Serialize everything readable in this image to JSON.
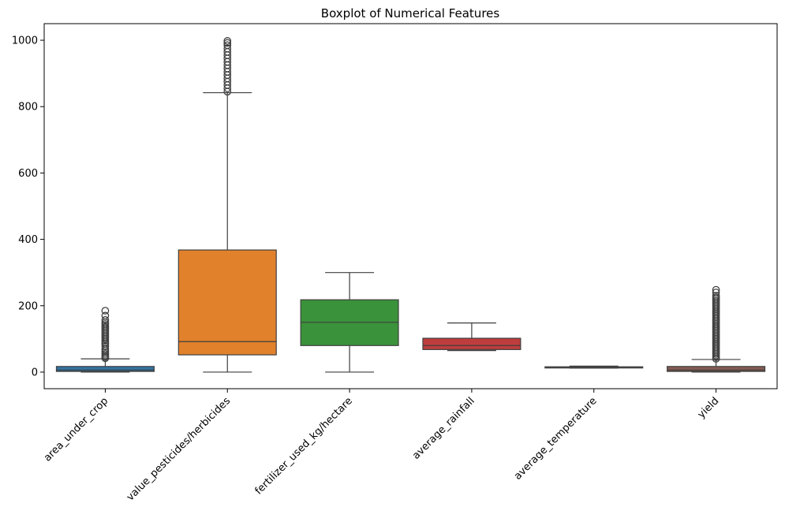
{
  "chart_data": {
    "type": "box",
    "title": "Boxplot of Numerical Features",
    "xlabel": "",
    "ylabel": "",
    "ylim": [
      -50,
      1050
    ],
    "yticks": [
      0,
      200,
      400,
      600,
      800,
      1000
    ],
    "grid": false,
    "categories": [
      "area_under_crop",
      "value_pesticides/herbicides",
      "fertilizer_used_kg/hectare",
      "average_rainfall",
      "average_temperature",
      "yield"
    ],
    "boxes": [
      {
        "category": "area_under_crop",
        "color": "#3274a1",
        "whisker_low": 0,
        "q1": 2,
        "median": 6,
        "q3": 17,
        "whisker_high": 40,
        "outliers": [
          42,
          46,
          50,
          55,
          60,
          65,
          70,
          78,
          85,
          90,
          95,
          100,
          105,
          110,
          115,
          120,
          125,
          130,
          135,
          140,
          145,
          150,
          157,
          170,
          185
        ]
      },
      {
        "category": "value_pesticides/herbicides",
        "color": "#e1812c",
        "whisker_low": 0,
        "q1": 52,
        "median": 92,
        "q3": 368,
        "whisker_high": 842,
        "outliers": [
          845,
          855,
          865,
          875,
          885,
          895,
          905,
          915,
          925,
          935,
          945,
          955,
          965,
          975,
          985,
          992,
          998
        ]
      },
      {
        "category": "fertilizer_used_kg/hectare",
        "color": "#3a923a",
        "whisker_low": 0,
        "q1": 80,
        "median": 150,
        "q3": 218,
        "whisker_high": 300,
        "outliers": []
      },
      {
        "category": "average_rainfall",
        "color": "#c03d3e",
        "whisker_low": 65,
        "q1": 68,
        "median": 80,
        "q3": 102,
        "whisker_high": 148,
        "outliers": []
      },
      {
        "category": "average_temperature",
        "color": "#9372b2",
        "whisker_low": 12,
        "q1": 14,
        "median": 15,
        "q3": 16,
        "whisker_high": 18,
        "outliers": []
      },
      {
        "category": "yield",
        "color": "#845b53",
        "whisker_low": 0,
        "q1": 2,
        "median": 6,
        "q3": 17,
        "whisker_high": 38,
        "outliers": [
          40,
          45,
          50,
          55,
          60,
          65,
          70,
          75,
          80,
          85,
          90,
          95,
          100,
          105,
          110,
          115,
          120,
          125,
          130,
          135,
          140,
          145,
          150,
          155,
          160,
          165,
          170,
          175,
          180,
          185,
          190,
          195,
          200,
          205,
          210,
          215,
          220,
          225,
          230,
          240,
          248
        ]
      }
    ]
  }
}
